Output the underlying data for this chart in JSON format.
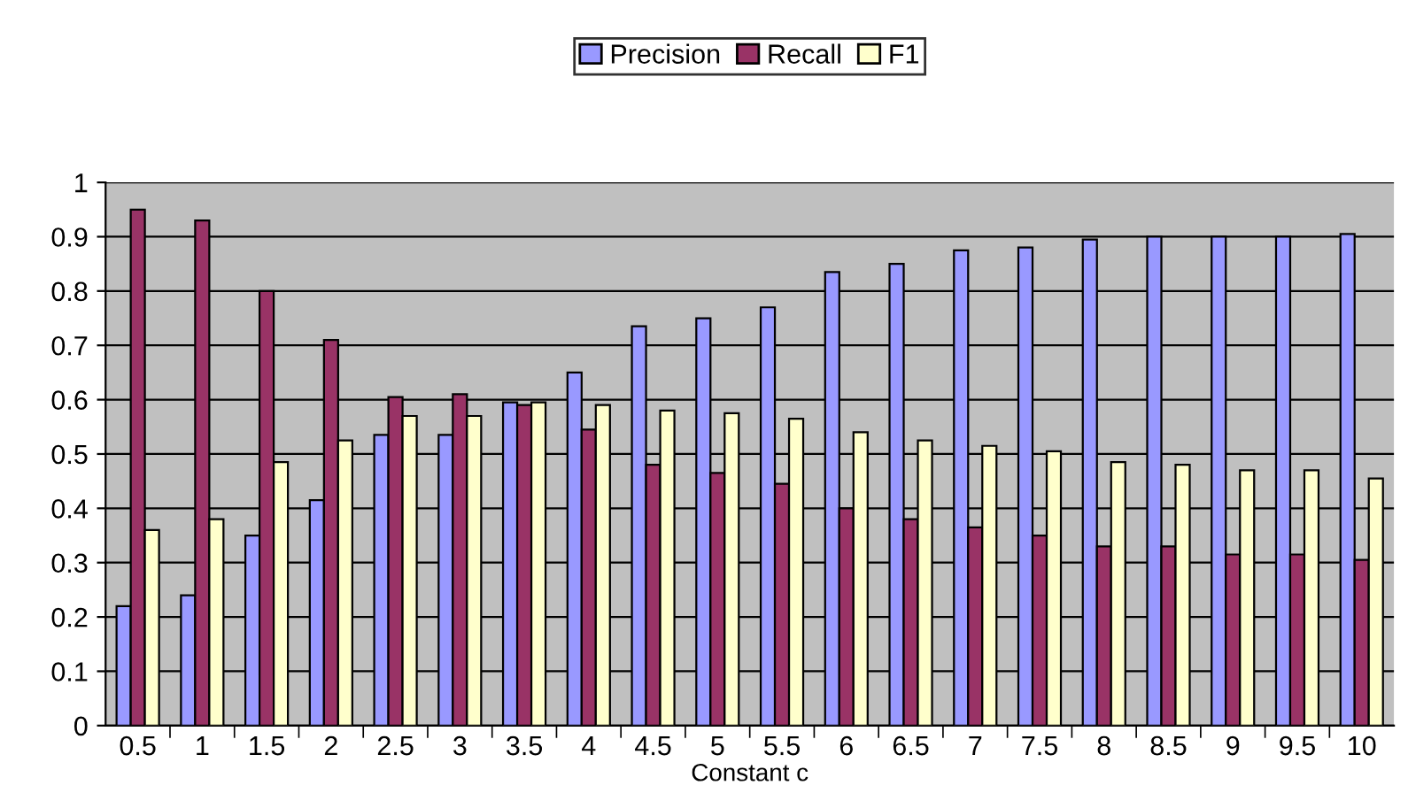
{
  "chart_data": {
    "type": "bar",
    "xlabel": "Constant c",
    "categories": [
      "0.5",
      "1",
      "1.5",
      "2",
      "2.5",
      "3",
      "3.5",
      "4",
      "4.5",
      "5",
      "5.5",
      "6",
      "6.5",
      "7",
      "7.5",
      "8",
      "8.5",
      "9",
      "9.5",
      "10"
    ],
    "series": [
      {
        "name": "Precision",
        "color": "#9999ff",
        "values": [
          0.22,
          0.24,
          0.35,
          0.415,
          0.535,
          0.535,
          0.595,
          0.65,
          0.735,
          0.75,
          0.77,
          0.835,
          0.85,
          0.875,
          0.88,
          0.895,
          0.9,
          0.9,
          0.9,
          0.905
        ]
      },
      {
        "name": "Recall",
        "color": "#993366",
        "values": [
          0.95,
          0.93,
          0.8,
          0.71,
          0.605,
          0.61,
          0.59,
          0.545,
          0.48,
          0.465,
          0.445,
          0.4,
          0.38,
          0.365,
          0.35,
          0.33,
          0.33,
          0.315,
          0.315,
          0.305
        ]
      },
      {
        "name": "F1",
        "color": "#ffffcc",
        "values": [
          0.36,
          0.38,
          0.485,
          0.525,
          0.57,
          0.57,
          0.595,
          0.59,
          0.58,
          0.575,
          0.565,
          0.54,
          0.525,
          0.515,
          0.505,
          0.485,
          0.48,
          0.47,
          0.47,
          0.455
        ]
      }
    ],
    "ylim": [
      0,
      1
    ],
    "yticks": [
      0,
      0.1,
      0.2,
      0.3,
      0.4,
      0.5,
      0.6,
      0.7,
      0.8,
      0.9,
      1
    ],
    "grid": "y",
    "legend": "top"
  }
}
